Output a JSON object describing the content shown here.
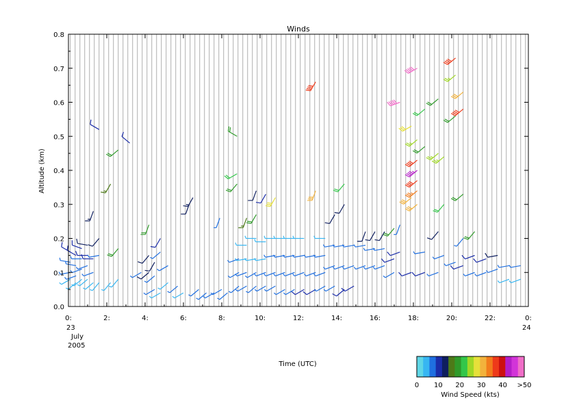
{
  "chart_data": {
    "type": "scatter",
    "subtype": "wind-barbs",
    "title": "Winds",
    "ylabel": "Altitude (km)",
    "xlabel": "Time (UTC)",
    "ylim": [
      0.0,
      0.8
    ],
    "xlim": [
      0,
      24
    ],
    "grid": "vertical lines at each profile time",
    "x_ticks": [
      {
        "value": 0,
        "label": "0:"
      },
      {
        "value": 2,
        "label": "2:"
      },
      {
        "value": 4,
        "label": "4:"
      },
      {
        "value": 6,
        "label": "6:"
      },
      {
        "value": 8,
        "label": "8:"
      },
      {
        "value": 10,
        "label": "10:"
      },
      {
        "value": 12,
        "label": "12:"
      },
      {
        "value": 14,
        "label": "14:"
      },
      {
        "value": 16,
        "label": "16:"
      },
      {
        "value": 18,
        "label": "18:"
      },
      {
        "value": 20,
        "label": "20:"
      },
      {
        "value": 22,
        "label": "22:"
      },
      {
        "value": 24,
        "label": "0:"
      }
    ],
    "date_start": {
      "day": "23",
      "month": "July",
      "year": "2005"
    },
    "date_end": {
      "day": "24"
    },
    "y_ticks": [
      {
        "value": 0.0,
        "label": "0.0"
      },
      {
        "value": 0.1,
        "label": "0.1"
      },
      {
        "value": 0.2,
        "label": "0.2"
      },
      {
        "value": 0.3,
        "label": "0.3"
      },
      {
        "value": 0.4,
        "label": "0.4"
      },
      {
        "value": 0.5,
        "label": "0.5"
      },
      {
        "value": 0.6,
        "label": "0.6"
      },
      {
        "value": 0.7,
        "label": "0.7"
      },
      {
        "value": 0.8,
        "label": "0.8"
      }
    ],
    "colorbar": {
      "title": "Wind Speed (kts)",
      "labels": [
        "0",
        "10",
        "20",
        "30",
        "40",
        ">50"
      ],
      "colors": [
        "#5fd6e6",
        "#37b6f2",
        "#1f6fe0",
        "#1a2ca8",
        "#0e1e5e",
        "#4d7a18",
        "#2f9a2a",
        "#33c64a",
        "#a0d826",
        "#e6e03a",
        "#f2b23c",
        "#f27c1c",
        "#ee3a1a",
        "#cc1010",
        "#b41ec8",
        "#d234d8",
        "#f06ec8"
      ]
    },
    "barbs": [
      {
        "t": 0.1,
        "alt": 0.16,
        "speed": 8,
        "dir": 300
      },
      {
        "t": 0.1,
        "alt": 0.13,
        "speed": 6,
        "dir": 280
      },
      {
        "t": 0.1,
        "alt": 0.1,
        "speed": 5,
        "dir": 260
      },
      {
        "t": 0.1,
        "alt": 0.08,
        "speed": 4,
        "dir": 240
      },
      {
        "t": 0.4,
        "alt": 0.15,
        "speed": 9,
        "dir": 300
      },
      {
        "t": 0.4,
        "alt": 0.12,
        "speed": 7,
        "dir": 280
      },
      {
        "t": 0.4,
        "alt": 0.09,
        "speed": 5,
        "dir": 250
      },
      {
        "t": 0.4,
        "alt": 0.07,
        "speed": 4,
        "dir": 230
      },
      {
        "t": 0.7,
        "alt": 0.17,
        "speed": 10,
        "dir": 290
      },
      {
        "t": 0.7,
        "alt": 0.14,
        "speed": 7,
        "dir": 270
      },
      {
        "t": 0.7,
        "alt": 0.11,
        "speed": 5,
        "dir": 250
      },
      {
        "t": 0.7,
        "alt": 0.08,
        "speed": 4,
        "dir": 230
      },
      {
        "t": 1.0,
        "alt": 0.18,
        "speed": 11,
        "dir": 280
      },
      {
        "t": 1.0,
        "alt": 0.15,
        "speed": 8,
        "dir": 270
      },
      {
        "t": 1.0,
        "alt": 0.12,
        "speed": 6,
        "dir": 250
      },
      {
        "t": 1.0,
        "alt": 0.08,
        "speed": 4,
        "dir": 230
      },
      {
        "t": 1.3,
        "alt": 0.28,
        "speed": 14,
        "dir": 200
      },
      {
        "t": 1.3,
        "alt": 0.14,
        "speed": 8,
        "dir": 270
      },
      {
        "t": 1.3,
        "alt": 0.1,
        "speed": 5,
        "dir": 250
      },
      {
        "t": 1.3,
        "alt": 0.07,
        "speed": 3,
        "dir": 230
      },
      {
        "t": 1.6,
        "alt": 0.52,
        "speed": 8,
        "dir": 300
      },
      {
        "t": 1.6,
        "alt": 0.2,
        "speed": 12,
        "dir": 220
      },
      {
        "t": 1.6,
        "alt": 0.15,
        "speed": 7,
        "dir": 260
      },
      {
        "t": 1.6,
        "alt": 0.07,
        "speed": 4,
        "dir": 220
      },
      {
        "t": 2.2,
        "alt": 0.36,
        "speed": 17,
        "dir": 210
      },
      {
        "t": 2.2,
        "alt": 0.07,
        "speed": 4,
        "dir": 220
      },
      {
        "t": 2.6,
        "alt": 0.46,
        "speed": 18,
        "dir": 230
      },
      {
        "t": 2.6,
        "alt": 0.17,
        "speed": 19,
        "dir": 220
      },
      {
        "t": 2.6,
        "alt": 0.08,
        "speed": 4,
        "dir": 220
      },
      {
        "t": 3.2,
        "alt": 0.48,
        "speed": 9,
        "dir": 310
      },
      {
        "t": 3.8,
        "alt": 0.1,
        "speed": 5,
        "dir": 240
      },
      {
        "t": 4.2,
        "alt": 0.24,
        "speed": 19,
        "dir": 200
      },
      {
        "t": 4.2,
        "alt": 0.15,
        "speed": 12,
        "dir": 220
      },
      {
        "t": 4.2,
        "alt": 0.1,
        "speed": 11,
        "dir": 230
      },
      {
        "t": 4.5,
        "alt": 0.13,
        "speed": 12,
        "dir": 210
      },
      {
        "t": 4.5,
        "alt": 0.09,
        "speed": 6,
        "dir": 230
      },
      {
        "t": 4.5,
        "alt": 0.05,
        "speed": 5,
        "dir": 240
      },
      {
        "t": 4.8,
        "alt": 0.2,
        "speed": 9,
        "dir": 210
      },
      {
        "t": 4.8,
        "alt": 0.16,
        "speed": 7,
        "dir": 230
      },
      {
        "t": 4.8,
        "alt": 0.04,
        "speed": 4,
        "dir": 240
      },
      {
        "t": 5.2,
        "alt": 0.12,
        "speed": 5,
        "dir": 240
      },
      {
        "t": 5.2,
        "alt": 0.07,
        "speed": 4,
        "dir": 230
      },
      {
        "t": 5.7,
        "alt": 0.06,
        "speed": 5,
        "dir": 230
      },
      {
        "t": 6.0,
        "alt": 0.04,
        "speed": 4,
        "dir": 240
      },
      {
        "t": 6.3,
        "alt": 0.3,
        "speed": 11,
        "dir": 200
      },
      {
        "t": 6.5,
        "alt": 0.32,
        "speed": 13,
        "dir": 210
      },
      {
        "t": 6.8,
        "alt": 0.05,
        "speed": 6,
        "dir": 230
      },
      {
        "t": 7.2,
        "alt": 0.04,
        "speed": 6,
        "dir": 230
      },
      {
        "t": 7.6,
        "alt": 0.04,
        "speed": 7,
        "dir": 240
      },
      {
        "t": 7.9,
        "alt": 0.26,
        "speed": 6,
        "dir": 200
      },
      {
        "t": 8.0,
        "alt": 0.05,
        "speed": 5,
        "dir": 240
      },
      {
        "t": 8.3,
        "alt": 0.04,
        "speed": 7,
        "dir": 230
      },
      {
        "t": 8.8,
        "alt": 0.5,
        "speed": 19,
        "dir": 300
      },
      {
        "t": 8.8,
        "alt": 0.39,
        "speed": 21,
        "dir": 240
      },
      {
        "t": 8.8,
        "alt": 0.36,
        "speed": 19,
        "dir": 220
      },
      {
        "t": 8.9,
        "alt": 0.06,
        "speed": 6,
        "dir": 230
      },
      {
        "t": 8.9,
        "alt": 0.1,
        "speed": 5,
        "dir": 240
      },
      {
        "t": 8.9,
        "alt": 0.14,
        "speed": 5,
        "dir": 250
      },
      {
        "t": 9.3,
        "alt": 0.26,
        "speed": 16,
        "dir": 200
      },
      {
        "t": 9.3,
        "alt": 0.06,
        "speed": 6,
        "dir": 240
      },
      {
        "t": 9.3,
        "alt": 0.1,
        "speed": 5,
        "dir": 250
      },
      {
        "t": 9.3,
        "alt": 0.14,
        "speed": 4,
        "dir": 260
      },
      {
        "t": 9.3,
        "alt": 0.18,
        "speed": 4,
        "dir": 270
      },
      {
        "t": 9.8,
        "alt": 0.34,
        "speed": 12,
        "dir": 200
      },
      {
        "t": 9.8,
        "alt": 0.27,
        "speed": 18,
        "dir": 210
      },
      {
        "t": 9.8,
        "alt": 0.06,
        "speed": 6,
        "dir": 230
      },
      {
        "t": 9.8,
        "alt": 0.1,
        "speed": 5,
        "dir": 240
      },
      {
        "t": 9.8,
        "alt": 0.14,
        "speed": 4,
        "dir": 260
      },
      {
        "t": 9.8,
        "alt": 0.2,
        "speed": 4,
        "dir": 270
      },
      {
        "t": 10.3,
        "alt": 0.33,
        "speed": 10,
        "dir": 210
      },
      {
        "t": 10.3,
        "alt": 0.06,
        "speed": 7,
        "dir": 240
      },
      {
        "t": 10.3,
        "alt": 0.1,
        "speed": 5,
        "dir": 250
      },
      {
        "t": 10.3,
        "alt": 0.14,
        "speed": 4,
        "dir": 260
      },
      {
        "t": 10.3,
        "alt": 0.19,
        "speed": 4,
        "dir": 270
      },
      {
        "t": 10.8,
        "alt": 0.32,
        "speed": 28,
        "dir": 210
      },
      {
        "t": 10.8,
        "alt": 0.06,
        "speed": 7,
        "dir": 240
      },
      {
        "t": 10.8,
        "alt": 0.1,
        "speed": 5,
        "dir": 250
      },
      {
        "t": 10.8,
        "alt": 0.15,
        "speed": 5,
        "dir": 260
      },
      {
        "t": 10.8,
        "alt": 0.2,
        "speed": 4,
        "dir": 270
      },
      {
        "t": 11.3,
        "alt": 0.05,
        "speed": 7,
        "dir": 240
      },
      {
        "t": 11.3,
        "alt": 0.1,
        "speed": 5,
        "dir": 250
      },
      {
        "t": 11.3,
        "alt": 0.15,
        "speed": 5,
        "dir": 260
      },
      {
        "t": 11.3,
        "alt": 0.2,
        "speed": 4,
        "dir": 270
      },
      {
        "t": 11.8,
        "alt": 0.05,
        "speed": 7,
        "dir": 240
      },
      {
        "t": 11.8,
        "alt": 0.1,
        "speed": 5,
        "dir": 250
      },
      {
        "t": 11.8,
        "alt": 0.15,
        "speed": 5,
        "dir": 260
      },
      {
        "t": 11.8,
        "alt": 0.2,
        "speed": 4,
        "dir": 270
      },
      {
        "t": 12.3,
        "alt": 0.05,
        "speed": 8,
        "dir": 240
      },
      {
        "t": 12.3,
        "alt": 0.1,
        "speed": 5,
        "dir": 250
      },
      {
        "t": 12.3,
        "alt": 0.15,
        "speed": 5,
        "dir": 260
      },
      {
        "t": 12.3,
        "alt": 0.2,
        "speed": 4,
        "dir": 270
      },
      {
        "t": 12.9,
        "alt": 0.66,
        "speed": 38,
        "dir": 210
      },
      {
        "t": 12.9,
        "alt": 0.34,
        "speed": 30,
        "dir": 200
      },
      {
        "t": 12.9,
        "alt": 0.05,
        "speed": 8,
        "dir": 240
      },
      {
        "t": 12.9,
        "alt": 0.1,
        "speed": 5,
        "dir": 250
      },
      {
        "t": 12.9,
        "alt": 0.15,
        "speed": 5,
        "dir": 260
      },
      {
        "t": 13.4,
        "alt": 0.06,
        "speed": 7,
        "dir": 240
      },
      {
        "t": 13.4,
        "alt": 0.1,
        "speed": 5,
        "dir": 250
      },
      {
        "t": 13.4,
        "alt": 0.15,
        "speed": 5,
        "dir": 260
      },
      {
        "t": 13.4,
        "alt": 0.2,
        "speed": 4,
        "dir": 270
      },
      {
        "t": 13.9,
        "alt": 0.27,
        "speed": 11,
        "dir": 210
      },
      {
        "t": 13.9,
        "alt": 0.06,
        "speed": 7,
        "dir": 240
      },
      {
        "t": 13.9,
        "alt": 0.12,
        "speed": 6,
        "dir": 250
      },
      {
        "t": 13.9,
        "alt": 0.18,
        "speed": 5,
        "dir": 260
      },
      {
        "t": 14.4,
        "alt": 0.36,
        "speed": 22,
        "dir": 220
      },
      {
        "t": 14.4,
        "alt": 0.3,
        "speed": 12,
        "dir": 210
      },
      {
        "t": 14.4,
        "alt": 0.05,
        "speed": 9,
        "dir": 230
      },
      {
        "t": 14.4,
        "alt": 0.12,
        "speed": 6,
        "dir": 250
      },
      {
        "t": 14.4,
        "alt": 0.18,
        "speed": 5,
        "dir": 260
      },
      {
        "t": 14.9,
        "alt": 0.06,
        "speed": 8,
        "dir": 240
      },
      {
        "t": 14.9,
        "alt": 0.12,
        "speed": 6,
        "dir": 250
      },
      {
        "t": 14.9,
        "alt": 0.18,
        "speed": 5,
        "dir": 260
      },
      {
        "t": 15.5,
        "alt": 0.22,
        "speed": 11,
        "dir": 200
      },
      {
        "t": 15.5,
        "alt": 0.12,
        "speed": 6,
        "dir": 250
      },
      {
        "t": 15.5,
        "alt": 0.18,
        "speed": 5,
        "dir": 260
      },
      {
        "t": 16.0,
        "alt": 0.22,
        "speed": 11,
        "dir": 210
      },
      {
        "t": 16.0,
        "alt": 0.12,
        "speed": 6,
        "dir": 250
      },
      {
        "t": 16.0,
        "alt": 0.17,
        "speed": 5,
        "dir": 260
      },
      {
        "t": 16.5,
        "alt": 0.22,
        "speed": 11,
        "dir": 210
      },
      {
        "t": 16.5,
        "alt": 0.12,
        "speed": 7,
        "dir": 250
      },
      {
        "t": 16.5,
        "alt": 0.17,
        "speed": 6,
        "dir": 260
      },
      {
        "t": 17.0,
        "alt": 0.23,
        "speed": 19,
        "dir": 220
      },
      {
        "t": 17.0,
        "alt": 0.14,
        "speed": 8,
        "dir": 250
      },
      {
        "t": 17.0,
        "alt": 0.1,
        "speed": 7,
        "dir": 240
      },
      {
        "t": 17.3,
        "alt": 0.6,
        "speed": 50,
        "dir": 250
      },
      {
        "t": 17.3,
        "alt": 0.24,
        "speed": 6,
        "dir": 200
      },
      {
        "t": 17.3,
        "alt": 0.16,
        "speed": 8,
        "dir": 250
      },
      {
        "t": 17.9,
        "alt": 0.53,
        "speed": 28,
        "dir": 240
      },
      {
        "t": 17.9,
        "alt": 0.32,
        "speed": 30,
        "dir": 230
      },
      {
        "t": 17.9,
        "alt": 0.1,
        "speed": 8,
        "dir": 250
      },
      {
        "t": 18.2,
        "alt": 0.7,
        "speed": 50,
        "dir": 240
      },
      {
        "t": 18.2,
        "alt": 0.49,
        "speed": 26,
        "dir": 230
      },
      {
        "t": 18.2,
        "alt": 0.43,
        "speed": 38,
        "dir": 230
      },
      {
        "t": 18.2,
        "alt": 0.4,
        "speed": 45,
        "dir": 230
      },
      {
        "t": 18.2,
        "alt": 0.37,
        "speed": 38,
        "dir": 230
      },
      {
        "t": 18.2,
        "alt": 0.34,
        "speed": 35,
        "dir": 230
      },
      {
        "t": 18.2,
        "alt": 0.3,
        "speed": 32,
        "dir": 230
      },
      {
        "t": 18.6,
        "alt": 0.58,
        "speed": 22,
        "dir": 230
      },
      {
        "t": 18.6,
        "alt": 0.47,
        "speed": 18,
        "dir": 230
      },
      {
        "t": 18.6,
        "alt": 0.1,
        "speed": 8,
        "dir": 250
      },
      {
        "t": 18.6,
        "alt": 0.16,
        "speed": 7,
        "dir": 260
      },
      {
        "t": 19.3,
        "alt": 0.61,
        "speed": 18,
        "dir": 230
      },
      {
        "t": 19.3,
        "alt": 0.45,
        "speed": 25,
        "dir": 230
      },
      {
        "t": 19.3,
        "alt": 0.22,
        "speed": 12,
        "dir": 220
      },
      {
        "t": 19.3,
        "alt": 0.1,
        "speed": 7,
        "dir": 250
      },
      {
        "t": 19.6,
        "alt": 0.44,
        "speed": 26,
        "dir": 230
      },
      {
        "t": 19.6,
        "alt": 0.3,
        "speed": 22,
        "dir": 220
      },
      {
        "t": 19.6,
        "alt": 0.15,
        "speed": 7,
        "dir": 250
      },
      {
        "t": 20.2,
        "alt": 0.73,
        "speed": 38,
        "dir": 230
      },
      {
        "t": 20.2,
        "alt": 0.68,
        "speed": 26,
        "dir": 230
      },
      {
        "t": 20.2,
        "alt": 0.56,
        "speed": 20,
        "dir": 230
      },
      {
        "t": 20.2,
        "alt": 0.13,
        "speed": 7,
        "dir": 250
      },
      {
        "t": 20.6,
        "alt": 0.63,
        "speed": 30,
        "dir": 230
      },
      {
        "t": 20.6,
        "alt": 0.58,
        "speed": 38,
        "dir": 230
      },
      {
        "t": 20.6,
        "alt": 0.33,
        "speed": 20,
        "dir": 230
      },
      {
        "t": 20.6,
        "alt": 0.2,
        "speed": 6,
        "dir": 220
      },
      {
        "t": 20.6,
        "alt": 0.12,
        "speed": 8,
        "dir": 250
      },
      {
        "t": 21.2,
        "alt": 0.22,
        "speed": 18,
        "dir": 220
      },
      {
        "t": 21.2,
        "alt": 0.15,
        "speed": 8,
        "dir": 250
      },
      {
        "t": 21.2,
        "alt": 0.1,
        "speed": 7,
        "dir": 250
      },
      {
        "t": 21.8,
        "alt": 0.14,
        "speed": 9,
        "dir": 250
      },
      {
        "t": 21.8,
        "alt": 0.1,
        "speed": 7,
        "dir": 250
      },
      {
        "t": 22.4,
        "alt": 0.15,
        "speed": 12,
        "dir": 260
      },
      {
        "t": 22.4,
        "alt": 0.11,
        "speed": 6,
        "dir": 250
      },
      {
        "t": 23.0,
        "alt": 0.12,
        "speed": 5,
        "dir": 260
      },
      {
        "t": 23.0,
        "alt": 0.08,
        "speed": 4,
        "dir": 250
      },
      {
        "t": 23.6,
        "alt": 0.12,
        "speed": 5,
        "dir": 260
      },
      {
        "t": 23.6,
        "alt": 0.08,
        "speed": 4,
        "dir": 250
      }
    ]
  }
}
